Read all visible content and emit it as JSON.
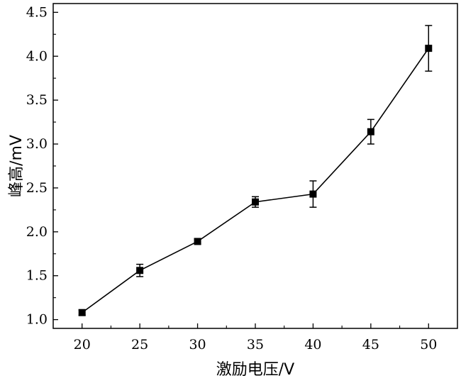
{
  "chart_data": {
    "type": "line",
    "xlabel": "激励电压/V",
    "ylabel": "峰高/mV",
    "x": [
      20,
      25,
      30,
      35,
      40,
      45,
      50
    ],
    "series": [
      {
        "values": [
          1.08,
          1.56,
          1.89,
          2.34,
          2.43,
          3.14,
          4.09
        ],
        "error": [
          0.03,
          0.07,
          0.03,
          0.06,
          0.15,
          0.14,
          0.26
        ],
        "marker": "square",
        "color": "#000000"
      }
    ],
    "xlim": [
      17.5,
      52.5
    ],
    "ylim": [
      0.9,
      4.6
    ],
    "xticks": [
      20,
      25,
      30,
      35,
      40,
      45,
      50
    ],
    "yticks": [
      1.0,
      1.5,
      2.0,
      2.5,
      3.0,
      3.5,
      4.0,
      4.5
    ],
    "xtick_labels": [
      "20",
      "25",
      "30",
      "35",
      "40",
      "45",
      "50"
    ],
    "ytick_labels": [
      "1.0",
      "1.5",
      "2.0",
      "2.5",
      "3.0",
      "3.5",
      "4.0",
      "4.5"
    ],
    "grid": false,
    "legend": "none"
  }
}
